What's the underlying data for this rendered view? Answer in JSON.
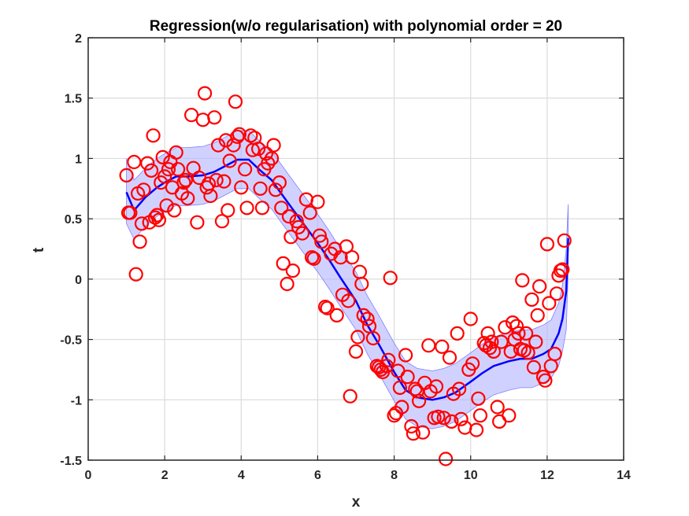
{
  "chart_data": {
    "type": "scatter",
    "title": "Regression(w/o regularisation) with polynomial order = 20",
    "xlabel": "x",
    "ylabel": "t",
    "xlim": [
      0,
      14
    ],
    "ylim": [
      -1.5,
      2
    ],
    "xticks": [
      0,
      2,
      4,
      6,
      8,
      10,
      12,
      14
    ],
    "yticks": [
      -1.5,
      -1,
      -0.5,
      0,
      0.5,
      1,
      1.5,
      2
    ],
    "xtick_labels": [
      "0",
      "2",
      "4",
      "6",
      "8",
      "10",
      "12",
      "14"
    ],
    "ytick_labels": [
      "-1.5",
      "-1",
      "-0.5",
      "0",
      "0.5",
      "1",
      "1.5",
      "2"
    ],
    "grid": true,
    "colors": {
      "points": "#ff0000",
      "fit": "#0000ff",
      "band": "#b3b3ff"
    },
    "fit_curve": {
      "x": [
        1.0,
        1.2,
        1.5,
        1.8,
        2.0,
        2.3,
        2.6,
        3.0,
        3.3,
        3.6,
        3.9,
        4.2,
        4.5,
        4.8,
        5.0,
        5.3,
        5.6,
        6.0,
        6.3,
        6.6,
        7.0,
        7.3,
        7.6,
        8.0,
        8.3,
        8.6,
        9.0,
        9.3,
        9.6,
        10.0,
        10.3,
        10.6,
        11.0,
        11.3,
        11.6,
        11.9,
        12.1,
        12.3,
        12.4,
        12.5,
        12.55
      ],
      "y": [
        0.72,
        0.57,
        0.68,
        0.76,
        0.8,
        0.85,
        0.85,
        0.86,
        0.89,
        0.94,
        0.99,
        0.99,
        0.9,
        0.82,
        0.73,
        0.6,
        0.47,
        0.3,
        0.16,
        0.01,
        -0.18,
        -0.38,
        -0.54,
        -0.77,
        -0.92,
        -0.98,
        -1.0,
        -0.98,
        -0.94,
        -0.85,
        -0.78,
        -0.72,
        -0.68,
        -0.66,
        -0.66,
        -0.62,
        -0.58,
        -0.45,
        -0.33,
        -0.1,
        0.34
      ]
    },
    "uncertainty_band": {
      "x": [
        1.0,
        1.2,
        1.5,
        1.8,
        2.0,
        2.3,
        2.6,
        3.0,
        3.3,
        3.6,
        3.9,
        4.2,
        4.5,
        4.8,
        5.0,
        5.3,
        5.6,
        6.0,
        6.3,
        6.6,
        7.0,
        7.3,
        7.6,
        8.0,
        8.3,
        8.6,
        9.0,
        9.3,
        9.6,
        10.0,
        10.3,
        10.6,
        11.0,
        11.3,
        11.6,
        11.9,
        12.1,
        12.3,
        12.4,
        12.5,
        12.55
      ],
      "upper": [
        1.0,
        0.82,
        0.92,
        1.0,
        1.04,
        1.09,
        1.09,
        1.1,
        1.13,
        1.18,
        1.23,
        1.23,
        1.14,
        1.06,
        0.97,
        0.84,
        0.71,
        0.54,
        0.4,
        0.25,
        0.06,
        -0.14,
        -0.3,
        -0.53,
        -0.68,
        -0.74,
        -0.76,
        -0.74,
        -0.7,
        -0.61,
        -0.54,
        -0.48,
        -0.44,
        -0.42,
        -0.42,
        -0.38,
        -0.34,
        -0.2,
        -0.05,
        0.25,
        0.62
      ],
      "lower": [
        0.46,
        0.33,
        0.44,
        0.52,
        0.56,
        0.61,
        0.61,
        0.62,
        0.65,
        0.7,
        0.75,
        0.75,
        0.66,
        0.58,
        0.49,
        0.36,
        0.23,
        0.06,
        -0.08,
        -0.23,
        -0.42,
        -0.62,
        -0.78,
        -1.01,
        -1.16,
        -1.22,
        -1.24,
        -1.22,
        -1.18,
        -1.09,
        -1.02,
        -0.96,
        -0.92,
        -0.9,
        -0.9,
        -0.86,
        -0.82,
        -0.72,
        -0.6,
        -0.42,
        0.06
      ]
    },
    "points": [
      [
        1.0,
        0.86
      ],
      [
        1.05,
        0.55
      ],
      [
        1.1,
        0.55
      ],
      [
        1.2,
        0.97
      ],
      [
        1.25,
        0.04
      ],
      [
        1.3,
        0.71
      ],
      [
        1.35,
        0.31
      ],
      [
        1.4,
        0.46
      ],
      [
        1.45,
        0.74
      ],
      [
        1.55,
        0.96
      ],
      [
        1.6,
        0.47
      ],
      [
        1.65,
        0.9
      ],
      [
        1.7,
        1.19
      ],
      [
        1.75,
        0.51
      ],
      [
        1.8,
        0.53
      ],
      [
        1.85,
        0.49
      ],
      [
        1.9,
        0.8
      ],
      [
        1.95,
        1.01
      ],
      [
        2.0,
        0.85
      ],
      [
        2.05,
        0.61
      ],
      [
        2.1,
        0.91
      ],
      [
        2.15,
        0.97
      ],
      [
        2.2,
        0.76
      ],
      [
        2.25,
        0.57
      ],
      [
        2.3,
        1.05
      ],
      [
        2.35,
        0.91
      ],
      [
        2.45,
        0.71
      ],
      [
        2.5,
        0.8
      ],
      [
        2.55,
        0.82
      ],
      [
        2.6,
        0.67
      ],
      [
        2.7,
        1.36
      ],
      [
        2.75,
        0.92
      ],
      [
        2.85,
        0.47
      ],
      [
        2.9,
        0.84
      ],
      [
        3.0,
        1.32
      ],
      [
        3.05,
        1.54
      ],
      [
        3.1,
        0.76
      ],
      [
        3.15,
        0.79
      ],
      [
        3.2,
        0.69
      ],
      [
        3.3,
        1.34
      ],
      [
        3.35,
        0.82
      ],
      [
        3.4,
        1.11
      ],
      [
        3.5,
        0.48
      ],
      [
        3.55,
        0.81
      ],
      [
        3.6,
        1.15
      ],
      [
        3.65,
        0.57
      ],
      [
        3.7,
        0.98
      ],
      [
        3.8,
        1.11
      ],
      [
        3.85,
        1.47
      ],
      [
        3.9,
        1.18
      ],
      [
        3.95,
        1.2
      ],
      [
        4.0,
        0.76
      ],
      [
        4.1,
        0.91
      ],
      [
        4.15,
        0.59
      ],
      [
        4.25,
        1.19
      ],
      [
        4.3,
        1.07
      ],
      [
        4.35,
        1.17
      ],
      [
        4.45,
        1.08
      ],
      [
        4.5,
        0.75
      ],
      [
        4.55,
        0.59
      ],
      [
        4.6,
        0.91
      ],
      [
        4.65,
        1.04
      ],
      [
        4.7,
        0.96
      ],
      [
        4.8,
        1.0
      ],
      [
        4.85,
        1.11
      ],
      [
        4.9,
        0.74
      ],
      [
        5.0,
        0.8
      ],
      [
        5.05,
        0.59
      ],
      [
        5.1,
        0.13
      ],
      [
        5.2,
        -0.04
      ],
      [
        5.25,
        0.52
      ],
      [
        5.3,
        0.35
      ],
      [
        5.35,
        0.07
      ],
      [
        5.45,
        0.48
      ],
      [
        5.5,
        0.43
      ],
      [
        5.6,
        0.38
      ],
      [
        5.7,
        0.66
      ],
      [
        5.8,
        0.55
      ],
      [
        5.85,
        0.18
      ],
      [
        5.9,
        0.17
      ],
      [
        6.0,
        0.64
      ],
      [
        6.05,
        0.36
      ],
      [
        6.1,
        0.31
      ],
      [
        6.2,
        -0.23
      ],
      [
        6.25,
        -0.24
      ],
      [
        6.35,
        0.21
      ],
      [
        6.45,
        0.25
      ],
      [
        6.5,
        -0.3
      ],
      [
        6.6,
        0.18
      ],
      [
        6.65,
        -0.13
      ],
      [
        6.75,
        0.27
      ],
      [
        6.8,
        -0.18
      ],
      [
        6.85,
        -0.97
      ],
      [
        6.9,
        0.18
      ],
      [
        7.0,
        -0.6
      ],
      [
        7.05,
        -0.48
      ],
      [
        7.1,
        0.06
      ],
      [
        7.15,
        -0.04
      ],
      [
        7.2,
        -0.3
      ],
      [
        7.3,
        -0.33
      ],
      [
        7.35,
        -0.39
      ],
      [
        7.45,
        -0.49
      ],
      [
        7.55,
        -0.72
      ],
      [
        7.6,
        -0.73
      ],
      [
        7.65,
        -0.75
      ],
      [
        7.7,
        -0.77
      ],
      [
        7.8,
        -0.72
      ],
      [
        7.85,
        -0.67
      ],
      [
        7.9,
        0.01
      ],
      [
        8.0,
        -1.13
      ],
      [
        8.05,
        -1.11
      ],
      [
        8.1,
        -0.76
      ],
      [
        8.15,
        -0.9
      ],
      [
        8.2,
        -1.06
      ],
      [
        8.3,
        -0.63
      ],
      [
        8.35,
        -0.81
      ],
      [
        8.45,
        -1.22
      ],
      [
        8.5,
        -1.28
      ],
      [
        8.55,
        -0.91
      ],
      [
        8.6,
        -0.93
      ],
      [
        8.65,
        -1.01
      ],
      [
        8.75,
        -1.27
      ],
      [
        8.8,
        -0.86
      ],
      [
        8.9,
        -0.55
      ],
      [
        8.95,
        -0.93
      ],
      [
        9.05,
        -1.15
      ],
      [
        9.1,
        -0.89
      ],
      [
        9.15,
        -1.14
      ],
      [
        9.25,
        -0.56
      ],
      [
        9.3,
        -1.15
      ],
      [
        9.35,
        -1.49
      ],
      [
        9.45,
        -0.65
      ],
      [
        9.5,
        -1.18
      ],
      [
        9.55,
        -0.95
      ],
      [
        9.65,
        -0.45
      ],
      [
        9.7,
        -0.91
      ],
      [
        9.75,
        -1.16
      ],
      [
        9.85,
        -1.23
      ],
      [
        9.95,
        -0.75
      ],
      [
        10.0,
        -0.33
      ],
      [
        10.05,
        -0.7
      ],
      [
        10.15,
        -1.25
      ],
      [
        10.2,
        -0.99
      ],
      [
        10.25,
        -1.13
      ],
      [
        10.35,
        -0.53
      ],
      [
        10.4,
        -0.55
      ],
      [
        10.45,
        -0.45
      ],
      [
        10.5,
        -0.57
      ],
      [
        10.55,
        -0.52
      ],
      [
        10.6,
        -0.6
      ],
      [
        10.7,
        -1.06
      ],
      [
        10.75,
        -1.18
      ],
      [
        10.8,
        -0.52
      ],
      [
        10.9,
        -0.4
      ],
      [
        11.0,
        -1.13
      ],
      [
        11.05,
        -0.6
      ],
      [
        11.1,
        -0.36
      ],
      [
        11.15,
        -0.5
      ],
      [
        11.2,
        -0.39
      ],
      [
        11.25,
        -0.45
      ],
      [
        11.3,
        -0.58
      ],
      [
        11.35,
        -0.01
      ],
      [
        11.4,
        -0.59
      ],
      [
        11.45,
        -0.45
      ],
      [
        11.5,
        -0.61
      ],
      [
        11.6,
        -0.17
      ],
      [
        11.65,
        -0.73
      ],
      [
        11.7,
        -0.52
      ],
      [
        11.75,
        -0.3
      ],
      [
        11.8,
        -0.06
      ],
      [
        11.9,
        -0.81
      ],
      [
        11.95,
        -0.84
      ],
      [
        12.0,
        0.29
      ],
      [
        12.05,
        -0.2
      ],
      [
        12.1,
        -0.72
      ],
      [
        12.2,
        -0.62
      ],
      [
        12.25,
        -0.12
      ],
      [
        12.3,
        0.03
      ],
      [
        12.35,
        0.07
      ],
      [
        12.4,
        0.08
      ],
      [
        12.45,
        0.32
      ]
    ]
  }
}
